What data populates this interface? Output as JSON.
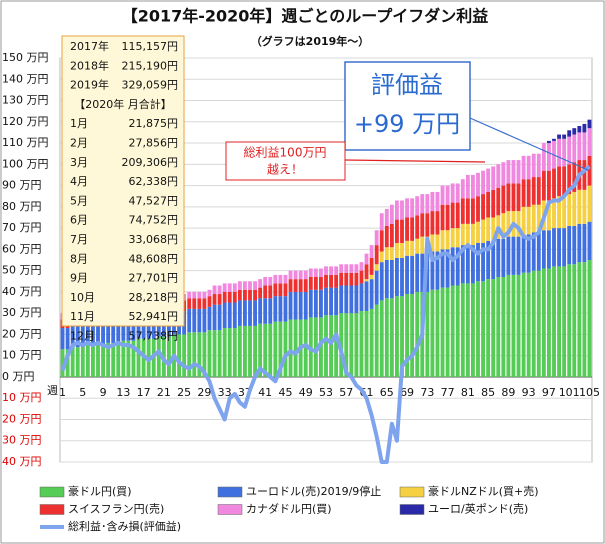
{
  "chart_data": {
    "type": "stacked-bar-line",
    "title": "【2017年-2020年】週ごとのループイフダン利益",
    "subtitle": "（グラフは2019年～）",
    "x_label": "週",
    "ylim": [
      -40,
      150
    ],
    "yticks": [
      {
        "value": -40,
        "label": "40 万円"
      },
      {
        "value": -30,
        "label": "30 万円"
      },
      {
        "value": -20,
        "label": "20 万円"
      },
      {
        "value": -10,
        "label": "10 万円"
      },
      {
        "value": 0,
        "label": "0 万円"
      },
      {
        "value": 10,
        "label": "10 万円"
      },
      {
        "value": 20,
        "label": "20 万円"
      },
      {
        "value": 30,
        "label": "30 万円"
      },
      {
        "value": 40,
        "label": "40 万円"
      },
      {
        "value": 50,
        "label": "50 万円"
      },
      {
        "value": 60,
        "label": "60 万円"
      },
      {
        "value": 70,
        "label": "70 万円"
      },
      {
        "value": 80,
        "label": "80 万円"
      },
      {
        "value": 90,
        "label": "90 万円"
      },
      {
        "value": 100,
        "label": "100 万円"
      },
      {
        "value": 110,
        "label": "110 万円"
      },
      {
        "value": 120,
        "label": "120 万円"
      },
      {
        "value": 130,
        "label": "130 万円"
      },
      {
        "value": 140,
        "label": "140 万円"
      },
      {
        "value": 150,
        "label": "150 万円"
      }
    ],
    "grid": true,
    "categories": [
      "1",
      null,
      null,
      null,
      "5",
      null,
      null,
      null,
      "9",
      null,
      null,
      null,
      "13",
      null,
      null,
      null,
      "17",
      null,
      null,
      null,
      "21",
      null,
      null,
      null,
      "25",
      null,
      null,
      null,
      "29",
      null,
      null,
      null,
      "33",
      null,
      null,
      null,
      "37",
      null,
      null,
      null,
      "41",
      null,
      null,
      null,
      "45",
      null,
      null,
      null,
      "49",
      null,
      null,
      null,
      "53",
      null,
      null,
      null,
      "57",
      null,
      null,
      null,
      "61",
      null,
      null,
      null,
      "65",
      null,
      null,
      null,
      "69",
      null,
      null,
      null,
      "73",
      null,
      null,
      null,
      "77",
      null,
      null,
      null,
      "81",
      null,
      null,
      null,
      "85",
      null,
      null,
      null,
      "89",
      null,
      null,
      null,
      "93",
      null,
      null,
      null,
      "97",
      null,
      null,
      null,
      "101",
      null,
      null,
      null,
      "105"
    ],
    "series": [
      {
        "name": "豪ドル円(買)",
        "color": "#55cc55",
        "values": [
          13,
          13,
          14,
          14,
          14,
          15,
          15,
          15,
          15,
          16,
          16,
          16,
          17,
          17,
          17,
          18,
          18,
          18,
          18,
          19,
          19,
          19,
          20,
          20,
          20,
          21,
          21,
          21,
          21,
          22,
          22,
          22,
          23,
          23,
          23,
          24,
          24,
          24,
          24,
          25,
          25,
          25,
          26,
          26,
          26,
          27,
          27,
          27,
          27,
          28,
          28,
          28,
          29,
          29,
          29,
          30,
          30,
          30,
          30,
          31,
          31,
          32,
          34,
          36,
          37,
          37,
          38,
          38,
          39,
          39,
          40,
          40,
          40,
          41,
          41,
          42,
          42,
          43,
          43,
          44,
          44,
          44,
          45,
          45,
          46,
          46,
          47,
          47,
          48,
          48,
          48,
          49,
          49,
          50,
          50,
          51,
          51,
          52,
          52,
          52,
          53,
          53,
          54,
          54,
          55
        ]
      },
      {
        "name": "ユーロドル(売)2019/9停止",
        "color": "#4070e0",
        "values": [
          10,
          10,
          10,
          10,
          10,
          10,
          10,
          10,
          10,
          10,
          10,
          10,
          10,
          10,
          10,
          11,
          11,
          11,
          11,
          11,
          11,
          11,
          11,
          11,
          11,
          11,
          11,
          11,
          11,
          11,
          12,
          12,
          12,
          12,
          12,
          12,
          12,
          12,
          12,
          12,
          12,
          12,
          12,
          12,
          12,
          13,
          13,
          13,
          13,
          13,
          13,
          13,
          13,
          13,
          13,
          13,
          13,
          13,
          13,
          13,
          14,
          14,
          16,
          18,
          18,
          18,
          18,
          18,
          18,
          18,
          18,
          18,
          18,
          18,
          18,
          18,
          18,
          18,
          18,
          18,
          18,
          18,
          18,
          18,
          18,
          18,
          18,
          18,
          18,
          18,
          18,
          18,
          18,
          18,
          18,
          18,
          18,
          18,
          18,
          18,
          18,
          18,
          18,
          18,
          18
        ]
      },
      {
        "name": "豪ドルNZドル(買+売)",
        "color": "#f5d040",
        "values": [
          0,
          0,
          0,
          0,
          0,
          0,
          0,
          0,
          0,
          0,
          0,
          0,
          0,
          0,
          0,
          0,
          0,
          0,
          0,
          0,
          0,
          0,
          0,
          0,
          0,
          0,
          0,
          0,
          0,
          0,
          0,
          0,
          0,
          0,
          0,
          0,
          0,
          0,
          0,
          0,
          0,
          0,
          0,
          0,
          0,
          0,
          0,
          0,
          0,
          0,
          0,
          0,
          0,
          0,
          0,
          0,
          0,
          0,
          0,
          0,
          1,
          2,
          3,
          5,
          6,
          6,
          7,
          7,
          7,
          7,
          7,
          8,
          8,
          8,
          8,
          9,
          9,
          9,
          9,
          10,
          10,
          10,
          10,
          11,
          11,
          11,
          11,
          12,
          12,
          12,
          12,
          13,
          13,
          13,
          13,
          14,
          14,
          14,
          15,
          15,
          15,
          16,
          16,
          16,
          17
        ]
      },
      {
        "name": "スイスフラン円(売)",
        "color": "#ee3030",
        "values": [
          4,
          4,
          4,
          4,
          4,
          4,
          4,
          4,
          4,
          4,
          4,
          4,
          4,
          4,
          4,
          4,
          4,
          4,
          4,
          4,
          5,
          5,
          5,
          5,
          5,
          5,
          5,
          5,
          5,
          5,
          5,
          5,
          5,
          5,
          5,
          5,
          5,
          5,
          5,
          5,
          6,
          6,
          6,
          6,
          6,
          6,
          6,
          6,
          6,
          6,
          6,
          6,
          6,
          6,
          6,
          6,
          6,
          6,
          6,
          6,
          7,
          8,
          9,
          10,
          10,
          11,
          11,
          11,
          11,
          11,
          11,
          11,
          11,
          11,
          11,
          12,
          12,
          12,
          12,
          12,
          12,
          12,
          12,
          12,
          12,
          13,
          13,
          13,
          13,
          13,
          13,
          13,
          13,
          13,
          13,
          14,
          14,
          14,
          14,
          14,
          14,
          14,
          14,
          14,
          14
        ]
      },
      {
        "name": "カナダドル円(買)",
        "color": "#f088e0",
        "values": [
          3,
          3,
          3,
          3,
          3,
          3,
          3,
          3,
          3,
          3,
          3,
          3,
          3,
          3,
          3,
          3,
          3,
          3,
          3,
          3,
          3,
          3,
          3,
          3,
          3,
          3,
          3,
          3,
          3,
          3,
          4,
          4,
          4,
          4,
          4,
          4,
          4,
          4,
          4,
          4,
          4,
          4,
          4,
          4,
          4,
          4,
          4,
          4,
          4,
          4,
          4,
          4,
          4,
          4,
          4,
          4,
          4,
          4,
          4,
          4,
          5,
          6,
          7,
          8,
          8,
          9,
          9,
          9,
          9,
          9,
          9,
          9,
          9,
          9,
          9,
          9,
          9,
          9,
          9,
          9,
          11,
          11,
          11,
          11,
          11,
          11,
          11,
          11,
          11,
          11,
          11,
          11,
          11,
          11,
          11,
          13,
          13,
          13,
          13,
          13,
          13,
          13,
          13,
          13,
          13
        ]
      },
      {
        "name": "ユーロ/英ポンド(売)",
        "color": "#2a2aa8",
        "values": [
          0,
          0,
          0,
          0,
          0,
          0,
          0,
          0,
          0,
          0,
          0,
          0,
          0,
          0,
          0,
          0,
          0,
          0,
          0,
          0,
          0,
          0,
          0,
          0,
          0,
          0,
          0,
          0,
          0,
          0,
          0,
          0,
          0,
          0,
          0,
          0,
          0,
          0,
          0,
          0,
          0,
          0,
          0,
          0,
          0,
          0,
          0,
          0,
          0,
          0,
          0,
          0,
          0,
          0,
          0,
          0,
          0,
          0,
          0,
          0,
          0,
          0,
          0,
          0,
          0,
          0,
          0,
          0,
          0,
          0,
          0,
          0,
          0,
          0,
          0,
          0,
          0,
          0,
          0,
          0,
          0,
          0,
          0,
          0,
          0,
          0,
          0,
          0,
          0,
          0,
          0,
          0,
          0,
          0,
          0,
          0,
          1,
          1,
          2,
          2,
          3,
          3,
          3,
          4,
          4
        ]
      },
      {
        "name": "総利益･含み損(評価益)",
        "color": "#7ea4ee",
        "kind": "line",
        "values": [
          3,
          10,
          15,
          16,
          15,
          16,
          15,
          16,
          15,
          14,
          15,
          16,
          15,
          15,
          14,
          12,
          10,
          8,
          10,
          12,
          8,
          6,
          10,
          7,
          5,
          4,
          6,
          5,
          2,
          -2,
          -10,
          -15,
          -20,
          -10,
          -8,
          -12,
          -14,
          -6,
          0,
          4,
          2,
          0,
          -2,
          4,
          10,
          12,
          11,
          14,
          15,
          13,
          12,
          16,
          18,
          16,
          20,
          12,
          2,
          0,
          -4,
          -6,
          -10,
          -18,
          -28,
          -40,
          -40,
          -22,
          -30,
          5,
          8,
          10,
          14,
          20,
          65,
          55,
          56,
          58,
          58,
          55,
          57,
          60,
          62,
          60,
          58,
          60,
          60,
          63,
          70,
          66,
          68,
          72,
          70,
          66,
          65,
          66,
          68,
          75,
          82,
          83,
          83,
          85,
          88,
          90,
          95,
          97,
          99
        ]
      }
    ],
    "summary": {
      "rows": [
        [
          "2017年",
          "115,157円"
        ],
        [
          "2018年",
          "215,190円"
        ],
        [
          "2019年",
          "329,059円"
        ]
      ],
      "header": "【2020年  月合計】",
      "months": [
        [
          "1月",
          "21,875円"
        ],
        [
          "2月",
          "27,856円"
        ],
        [
          "3月",
          "209,306円"
        ],
        [
          "4月",
          "62,338円"
        ],
        [
          "5月",
          "47,527円"
        ],
        [
          "6月",
          "74,752円"
        ],
        [
          "7月",
          "33,068円"
        ],
        [
          "8月",
          "48,608円"
        ],
        [
          "9月",
          "27,701円"
        ],
        [
          "10月",
          "28,218円"
        ],
        [
          "11月",
          "52,941円"
        ],
        [
          "12月",
          "57,738円"
        ]
      ]
    },
    "callout": {
      "line1": "評価益",
      "line2": "+99 万円"
    },
    "note": {
      "line1": "総利益100万円",
      "line2": "越え！"
    }
  }
}
